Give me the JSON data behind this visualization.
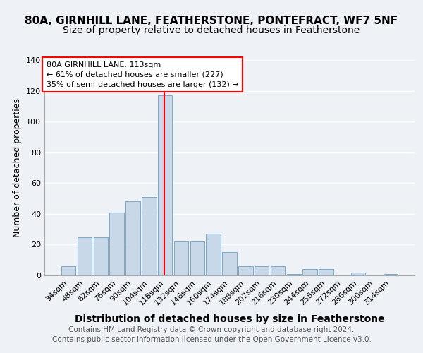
{
  "title": "80A, GIRNHILL LANE, FEATHERSTONE, PONTEFRACT, WF7 5NF",
  "subtitle": "Size of property relative to detached houses in Featherstone",
  "xlabel": "Distribution of detached houses by size in Featherstone",
  "ylabel": "Number of detached properties",
  "categories": [
    "34sqm",
    "48sqm",
    "62sqm",
    "76sqm",
    "90sqm",
    "104sqm",
    "118sqm",
    "132sqm",
    "146sqm",
    "160sqm",
    "174sqm",
    "188sqm",
    "202sqm",
    "216sqm",
    "230sqm",
    "244sqm",
    "258sqm",
    "272sqm",
    "286sqm",
    "300sqm",
    "314sqm"
  ],
  "bar_values": [
    6,
    25,
    25,
    41,
    48,
    51,
    117,
    22,
    22,
    27,
    15,
    6,
    6,
    6,
    1,
    4,
    4,
    0,
    2,
    0,
    1
  ],
  "vline_x": 5.93,
  "vline_color": "red",
  "annotation_line1": "80A GIRNHILL LANE: 113sqm",
  "annotation_line2": "← 61% of detached houses are smaller (227)",
  "annotation_line3": "35% of semi-detached houses are larger (132) →",
  "ylim": [
    0,
    140
  ],
  "yticks": [
    0,
    20,
    40,
    60,
    80,
    100,
    120,
    140
  ],
  "bar_color": "#c8d8e8",
  "bar_edge_color": "#7aaac8",
  "footnote1": "Contains HM Land Registry data © Crown copyright and database right 2024.",
  "footnote2": "Contains public sector information licensed under the Open Government Licence v3.0.",
  "title_fontsize": 11,
  "subtitle_fontsize": 10,
  "xlabel_fontsize": 10,
  "ylabel_fontsize": 9,
  "tick_fontsize": 8,
  "footnote_fontsize": 7.5,
  "background_color": "#eef2f7"
}
